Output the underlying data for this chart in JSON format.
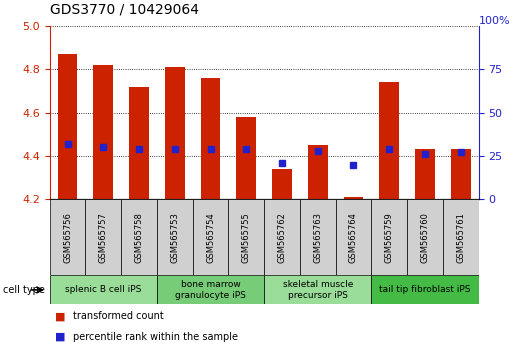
{
  "title": "GDS3770 / 10429064",
  "samples": [
    "GSM565756",
    "GSM565757",
    "GSM565758",
    "GSM565753",
    "GSM565754",
    "GSM565755",
    "GSM565762",
    "GSM565763",
    "GSM565764",
    "GSM565759",
    "GSM565760",
    "GSM565761"
  ],
  "transformed_count": [
    4.87,
    4.82,
    4.72,
    4.81,
    4.76,
    4.58,
    4.34,
    4.45,
    4.21,
    4.74,
    4.43,
    4.43
  ],
  "percentile_rank": [
    32,
    30,
    29,
    29,
    29,
    29,
    21,
    28,
    20,
    29,
    26,
    27
  ],
  "ylim_left": [
    4.2,
    5.0
  ],
  "ylim_right": [
    0,
    100
  ],
  "yticks_left": [
    4.2,
    4.4,
    4.6,
    4.8,
    5.0
  ],
  "yticks_right": [
    0,
    25,
    50,
    75
  ],
  "ytick_right_top_label": "100%",
  "cell_types": [
    {
      "label": "splenic B cell iPS",
      "start": 0,
      "end": 3,
      "color": "#99dd99"
    },
    {
      "label": "bone marrow\ngranulocyte iPS",
      "start": 3,
      "end": 6,
      "color": "#77cc77"
    },
    {
      "label": "skeletal muscle\nprecursor iPS",
      "start": 6,
      "end": 9,
      "color": "#99dd99"
    },
    {
      "label": "tail tip fibroblast iPS",
      "start": 9,
      "end": 12,
      "color": "#44bb44"
    }
  ],
  "bar_color": "#cc2200",
  "dot_color": "#2222cc",
  "bar_bottom": 4.2,
  "tick_label_color_left": "#cc2200",
  "tick_label_color_right": "#2222cc",
  "sample_box_color": "#d0d0d0",
  "cell_type_label_fontsize": 6.5,
  "sample_label_fontsize": 6.0,
  "title_fontsize": 10
}
